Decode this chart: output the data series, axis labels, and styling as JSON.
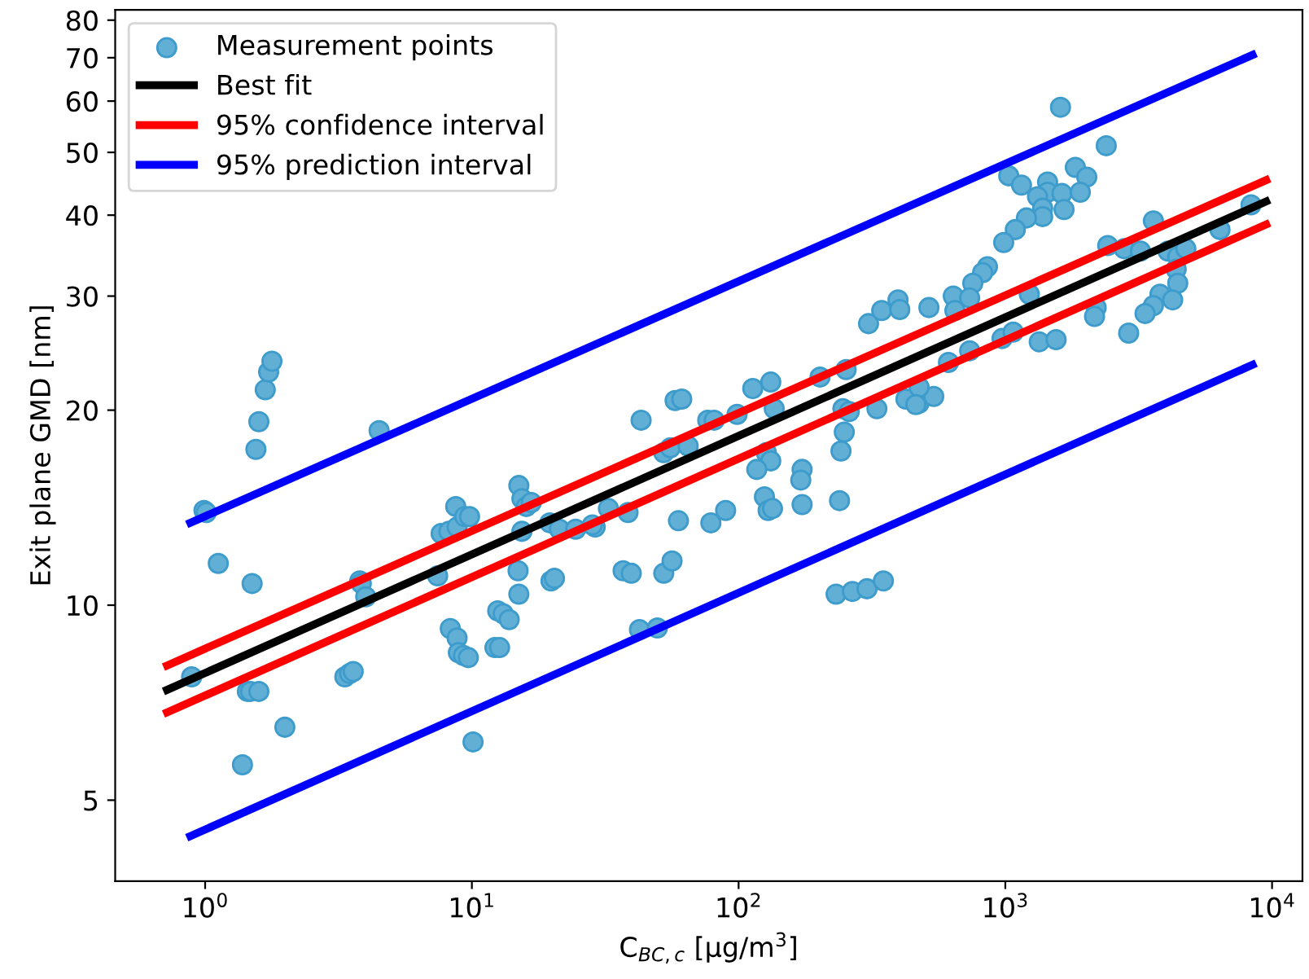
{
  "chart_data": {
    "type": "scatter",
    "xlabel": "C$_{BC,c}$ [μg/m$^{3}$]",
    "ylabel": "Exit plane GMD [nm]",
    "log": "xy",
    "grid": false,
    "legend": "top left",
    "xlim": [
      0.46,
      13000
    ],
    "ylim": [
      3.75,
      83
    ],
    "xticks": [
      {
        "value": 1,
        "label": "10$^{0}$"
      },
      {
        "value": 10,
        "label": "10$^{1}$"
      },
      {
        "value": 100,
        "label": "10$^{2}$"
      },
      {
        "value": 1000,
        "label": "10$^{3}$"
      },
      {
        "value": 10000,
        "label": "10$^{4}$"
      }
    ],
    "yticks": [
      5,
      10,
      20,
      30,
      40,
      50,
      60,
      70,
      80
    ],
    "series": [
      {
        "name": "Measurement points",
        "marker": "circle",
        "color": "#62afd6",
        "x": [
          0.99,
          1.01,
          1.12,
          1.5,
          0.89,
          1.44,
          1.48,
          1.59,
          1.99,
          1.38,
          1.55,
          1.59,
          1.68,
          1.73,
          1.78,
          4.49,
          3.8,
          3.85,
          4.0,
          3.34,
          3.48,
          3.59,
          10.1,
          7.44,
          7.67,
          8.2,
          8.8,
          8.7,
          9.4,
          9.8,
          8.3,
          8.8,
          8.9,
          9.3,
          9.7,
          12.2,
          12.7,
          12.5,
          13.1,
          13.8,
          15.0,
          14.9,
          15.4,
          15.0,
          15.4,
          16.0,
          16.7,
          19.6,
          19.8,
          20.4,
          21.3,
          24.5,
          29.0,
          307,
          344,
          396,
          402,
          517,
          638,
          647,
          202,
          253,
          132,
          113,
          57.8,
          61.2,
          76.6,
          81,
          98.7,
          43.1,
          136,
          52.4,
          55.5,
          64.7,
          127,
          132,
          117,
          173,
          171,
          249,
          242,
          246,
          260,
          330,
          424,
          475,
          539,
          475,
          38.5,
          59.5,
          78.7,
          89.4,
          125,
          129,
          134,
          173,
          239,
          28.3,
          32.5,
          36.9,
          39.6,
          52.4,
          56.3,
          42.5,
          49.6,
          232,
          267,
          303,
          349,
          1610,
          2390,
          1030,
          1150,
          1440,
          1440,
          1320,
          1380,
          1380,
          1630,
          1660,
          1830,
          2020,
          1910,
          1200,
          1090,
          986,
          857,
          822,
          755,
          735,
          1230,
          972,
          1070,
          1340,
          1550,
          735,
          612,
          462,
          2420,
          2790,
          3210,
          3590,
          4070,
          4430,
          4370,
          4430,
          3800,
          4240,
          3590,
          3340,
          2190,
          2160,
          2900,
          6380,
          8340,
          4750
        ],
        "values": [
          14.0,
          13.9,
          11.6,
          10.8,
          7.75,
          7.36,
          7.36,
          7.36,
          6.48,
          5.67,
          17.4,
          19.2,
          21.5,
          22.9,
          23.8,
          18.6,
          10.9,
          10.8,
          10.3,
          7.75,
          7.84,
          7.9,
          6.15,
          11.1,
          12.9,
          13.0,
          13.2,
          14.2,
          13.7,
          13.7,
          9.2,
          8.9,
          8.45,
          8.36,
          8.3,
          8.6,
          8.6,
          9.8,
          9.7,
          9.5,
          10.4,
          11.3,
          13.0,
          15.3,
          14.6,
          14.2,
          14.4,
          13.4,
          10.9,
          11.0,
          13.1,
          13.1,
          13.2,
          27.2,
          28.5,
          29.6,
          28.6,
          28.8,
          30.0,
          28.5,
          22.5,
          23.1,
          22.1,
          21.6,
          20.7,
          20.8,
          19.3,
          19.3,
          19.7,
          19.3,
          20.1,
          17.2,
          17.5,
          17.6,
          17.2,
          16.7,
          16.2,
          16.2,
          15.6,
          18.5,
          17.3,
          20.1,
          19.9,
          20.1,
          20.8,
          20.5,
          21.0,
          21.7,
          13.9,
          13.5,
          13.4,
          14.0,
          14.7,
          14.0,
          14.1,
          14.3,
          14.5,
          13.3,
          14.1,
          11.3,
          11.2,
          11.2,
          11.7,
          9.17,
          9.22,
          10.4,
          10.5,
          10.6,
          10.9,
          58.7,
          51.2,
          46.0,
          44.5,
          45.0,
          43.4,
          42.7,
          41.0,
          39.8,
          43.2,
          40.8,
          47.4,
          45.8,
          43.4,
          39.6,
          38.0,
          36.3,
          33.3,
          32.6,
          31.4,
          29.8,
          30.2,
          25.8,
          26.4,
          25.5,
          25.7,
          24.7,
          23.7,
          20.4,
          35.9,
          35.5,
          35.2,
          39.2,
          35.2,
          34.5,
          33.0,
          31.4,
          30.2,
          29.6,
          29.0,
          28.2,
          28.8,
          27.9,
          26.3,
          38.0,
          41.5,
          35.5
        ]
      },
      {
        "name": "Best fit",
        "type": "line",
        "marker": "none",
        "line_style": "solid",
        "color": "#000000",
        "x": [
          0.72,
          9500
        ],
        "values": [
          7.4,
          42.0
        ]
      },
      {
        "name": "95% confidence interval",
        "type": "line",
        "marker": "none",
        "line_style": "solid",
        "color": "#ff0000",
        "x": [
          0.72,
          9500
        ],
        "values": [
          8.07,
          45.3
        ]
      },
      {
        "type": "line",
        "marker": "none",
        "line_style": "solid",
        "color": "#ff0000",
        "x": [
          0.72,
          9500
        ],
        "values": [
          6.83,
          38.7
        ]
      },
      {
        "name": "95% prediction interval",
        "type": "line",
        "marker": "none",
        "line_style": "solid",
        "color": "#0000ff",
        "x": [
          0.88,
          8450
        ],
        "values": [
          13.4,
          70.7
        ]
      },
      {
        "type": "line",
        "marker": "none",
        "line_style": "solid",
        "color": "#0000ff",
        "x": [
          0.88,
          8450
        ],
        "values": [
          4.4,
          23.5
        ]
      }
    ]
  }
}
